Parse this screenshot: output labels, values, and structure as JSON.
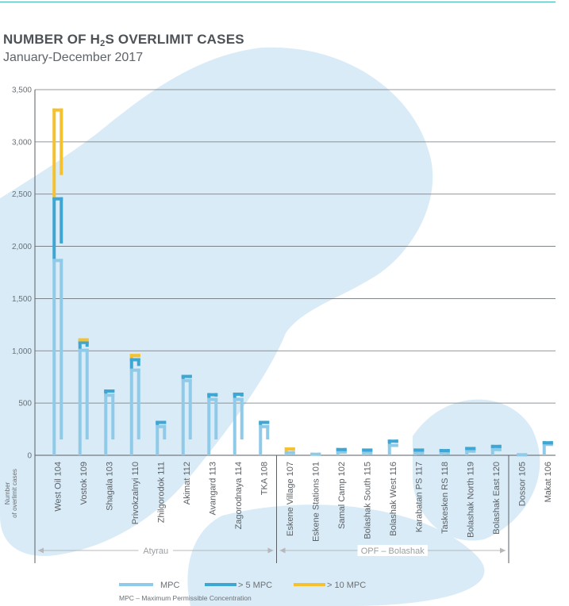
{
  "chart_data": {
    "type": "bar",
    "title_main": "NUMBER OF H",
    "title_sub": "2",
    "title_end": "S OVERLIMIT CASES",
    "subtitle": "January-December 2017",
    "ylabel_line1": "Number",
    "ylabel_line2": "of overlimit cases",
    "ylim": [
      0,
      3500
    ],
    "yticks": [
      "0",
      "500",
      "1,000",
      "1,500",
      "2,000",
      "2,500",
      "3,000",
      "3,500"
    ],
    "ytick_values": [
      0,
      500,
      1000,
      1500,
      2000,
      2500,
      3000,
      3500
    ],
    "categories": [
      "West Oil 104",
      "Vostok 109",
      "Shagala 103",
      "Privokzalnyi 110",
      "Zhilgorodok 111",
      "Akimat 112",
      "Avangard 113",
      "Zagorodnaya 114",
      "TKA 108",
      "Eskene Village 107",
      "Eskene Stations 101",
      "Samal Camp 102",
      "Bolashak South 115",
      "Bolashak West 116",
      "Karabatan PS 117",
      "Taskesken RS 118",
      "Bolashak North 119",
      "Bolashak East 120",
      "Dossor 105",
      "Makat 106"
    ],
    "series": [
      {
        "name": "MPC",
        "color": "#8fcbe8",
        "values": [
          1880,
          1020,
          590,
          830,
          290,
          730,
          550,
          550,
          290,
          40,
          25,
          45,
          40,
          110,
          40,
          40,
          55,
          70,
          20,
          120
        ]
      },
      {
        "name": "> 5 MPC",
        "color": "#3ea6d3",
        "values": [
          590,
          75,
          40,
          100,
          40,
          40,
          45,
          50,
          40,
          0,
          0,
          25,
          25,
          40,
          25,
          20,
          25,
          30,
          0,
          15
        ]
      },
      {
        "name": "> 10 MPC",
        "color": "#f6c12e",
        "values": [
          850,
          25,
          0,
          40,
          0,
          0,
          0,
          0,
          0,
          35,
          0,
          0,
          0,
          0,
          0,
          0,
          0,
          0,
          0,
          0
        ]
      }
    ],
    "groups": [
      {
        "name": "Atyrau",
        "from": 0,
        "to": 8
      },
      {
        "name": "OPF – Bolashak",
        "from": 9,
        "to": 17
      }
    ],
    "legend_position": "bottom",
    "note": "MPC – Maximum Permissible Concentration",
    "grid": true
  }
}
